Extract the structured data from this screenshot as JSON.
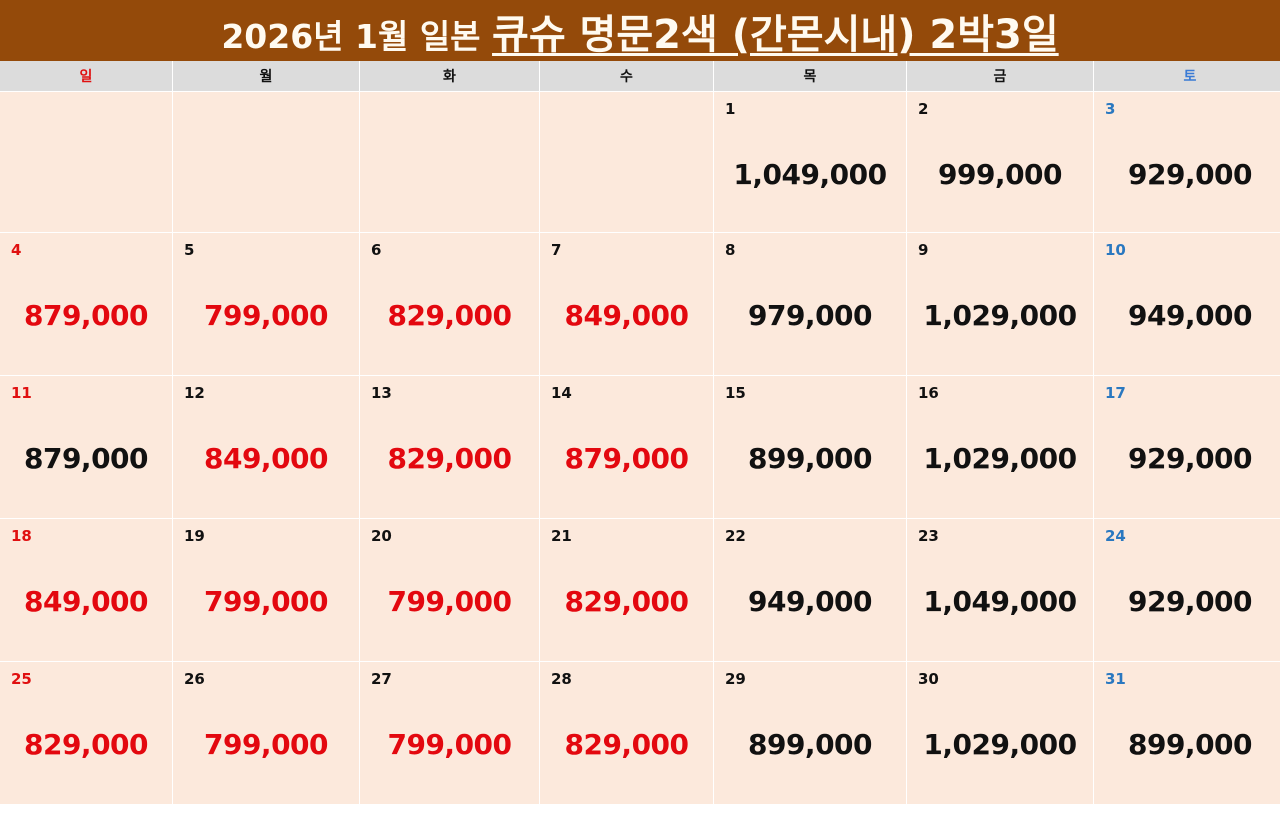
{
  "header": {
    "title_prefix": "2026년 1월 일본 ",
    "title_main": "큐슈 명문2색 (간몬시내) 2박3일"
  },
  "weekdays": [
    {
      "label": "일",
      "type": "sun"
    },
    {
      "label": "월",
      "type": "weekday"
    },
    {
      "label": "화",
      "type": "weekday"
    },
    {
      "label": "수",
      "type": "weekday"
    },
    {
      "label": "목",
      "type": "weekday"
    },
    {
      "label": "금",
      "type": "weekday"
    },
    {
      "label": "토",
      "type": "sat"
    }
  ],
  "colors": {
    "header_bg": "#944a0a",
    "cell_bg": "#fce9dc",
    "weekday_header_bg": "#dcdcdc",
    "sunday": "#e01010",
    "saturday": "#2a78c0",
    "price_red": "#e3080f",
    "price_black": "#111111"
  },
  "calendar": {
    "month": "2026-01",
    "weeks": [
      [
        {
          "day": "",
          "price": "",
          "red": false
        },
        {
          "day": "",
          "price": "",
          "red": false
        },
        {
          "day": "",
          "price": "",
          "red": false
        },
        {
          "day": "",
          "price": "",
          "red": false
        },
        {
          "day": "1",
          "price": "1,049,000",
          "red": false
        },
        {
          "day": "2",
          "price": "999,000",
          "red": false
        },
        {
          "day": "3",
          "price": "929,000",
          "red": false
        }
      ],
      [
        {
          "day": "4",
          "price": "879,000",
          "red": true
        },
        {
          "day": "5",
          "price": "799,000",
          "red": true
        },
        {
          "day": "6",
          "price": "829,000",
          "red": true
        },
        {
          "day": "7",
          "price": "849,000",
          "red": true
        },
        {
          "day": "8",
          "price": "979,000",
          "red": false
        },
        {
          "day": "9",
          "price": "1,029,000",
          "red": false
        },
        {
          "day": "10",
          "price": "949,000",
          "red": false
        }
      ],
      [
        {
          "day": "11",
          "price": "879,000",
          "red": false
        },
        {
          "day": "12",
          "price": "849,000",
          "red": true
        },
        {
          "day": "13",
          "price": "829,000",
          "red": true
        },
        {
          "day": "14",
          "price": "879,000",
          "red": true
        },
        {
          "day": "15",
          "price": "899,000",
          "red": false
        },
        {
          "day": "16",
          "price": "1,029,000",
          "red": false
        },
        {
          "day": "17",
          "price": "929,000",
          "red": false
        }
      ],
      [
        {
          "day": "18",
          "price": "849,000",
          "red": true
        },
        {
          "day": "19",
          "price": "799,000",
          "red": true
        },
        {
          "day": "20",
          "price": "799,000",
          "red": true
        },
        {
          "day": "21",
          "price": "829,000",
          "red": true
        },
        {
          "day": "22",
          "price": "949,000",
          "red": false
        },
        {
          "day": "23",
          "price": "1,049,000",
          "red": false
        },
        {
          "day": "24",
          "price": "929,000",
          "red": false
        }
      ],
      [
        {
          "day": "25",
          "price": "829,000",
          "red": true
        },
        {
          "day": "26",
          "price": "799,000",
          "red": true
        },
        {
          "day": "27",
          "price": "799,000",
          "red": true
        },
        {
          "day": "28",
          "price": "829,000",
          "red": true
        },
        {
          "day": "29",
          "price": "899,000",
          "red": false
        },
        {
          "day": "30",
          "price": "1,029,000",
          "red": false
        },
        {
          "day": "31",
          "price": "899,000",
          "red": false
        }
      ]
    ]
  }
}
